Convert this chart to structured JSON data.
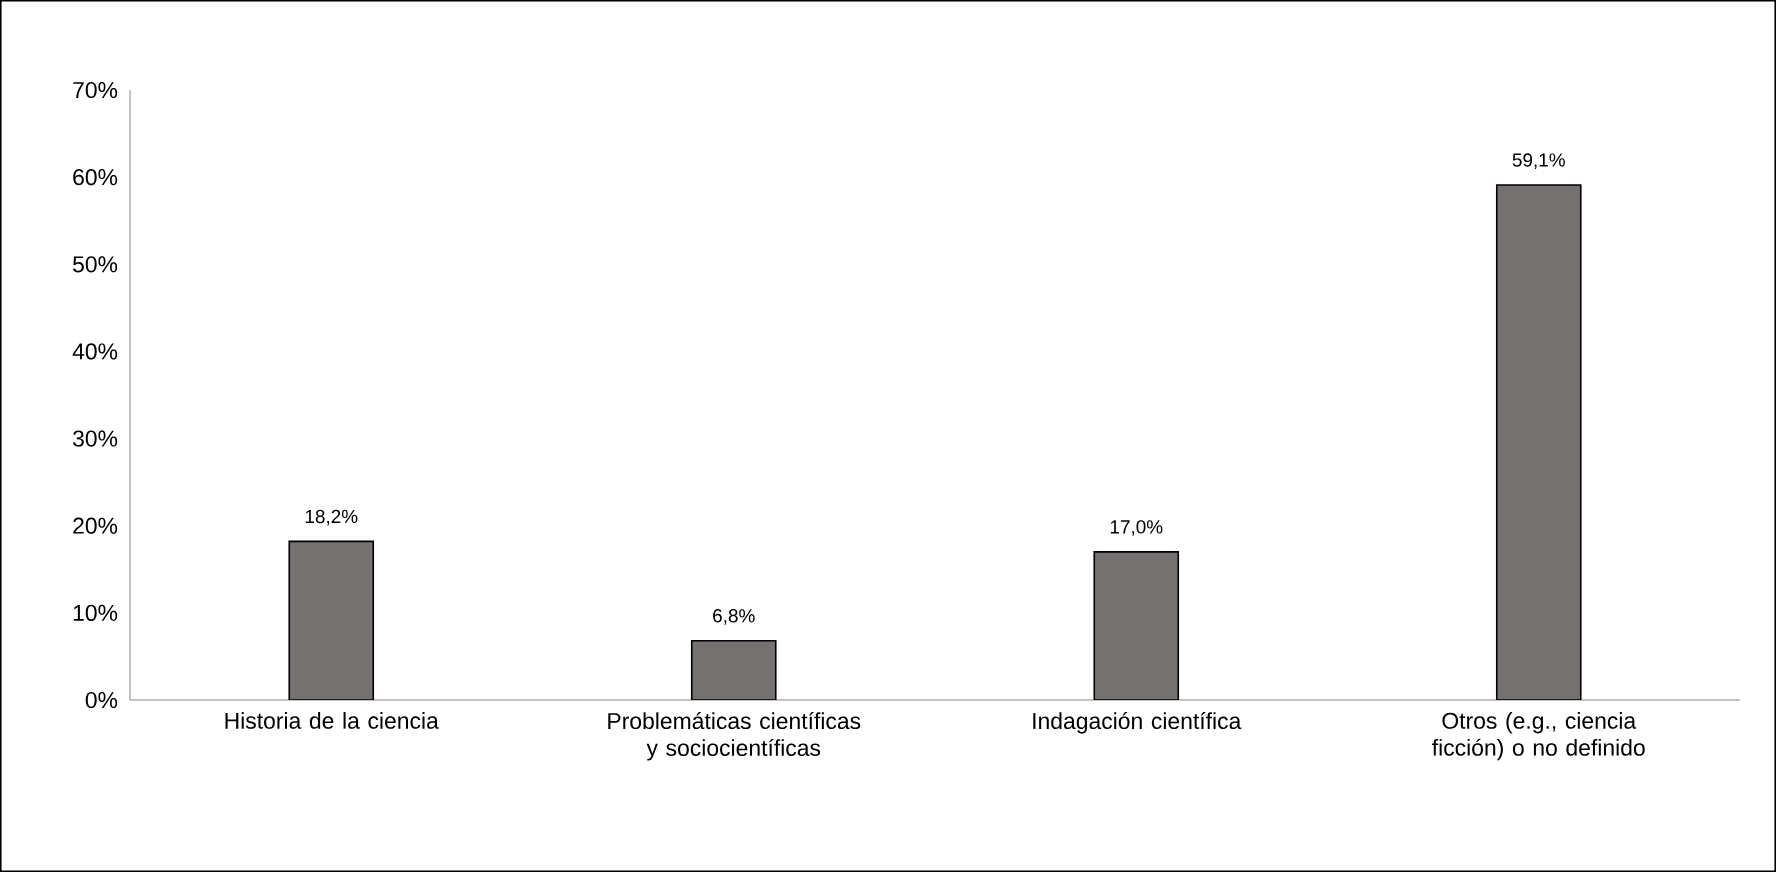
{
  "chart_data": {
    "type": "bar",
    "categories": [
      "Historia de la ciencia",
      "Problemáticas científicas y sociocientíficas",
      "Indagación científica",
      "Otros (e.g., ciencia ficción) o no definido"
    ],
    "values": [
      18.2,
      6.8,
      17.0,
      59.1
    ],
    "value_labels": [
      "18,2%",
      "6,8%",
      "17,0%",
      "59,1%"
    ],
    "color": "#767171",
    "ylim": [
      0,
      70
    ],
    "yticks": [
      {
        "value": 0,
        "label": "0%"
      },
      {
        "value": 10,
        "label": "10%"
      },
      {
        "value": 20,
        "label": "20%"
      },
      {
        "value": 30,
        "label": "30%"
      },
      {
        "value": 40,
        "label": "40%"
      },
      {
        "value": 50,
        "label": "50%"
      },
      {
        "value": 60,
        "label": "60%"
      },
      {
        "value": 70,
        "label": "70%"
      }
    ],
    "grid": false
  }
}
